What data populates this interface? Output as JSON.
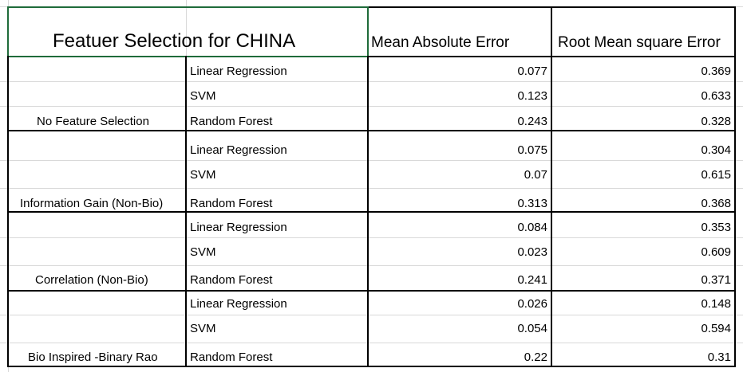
{
  "table": {
    "title": "Featuer Selection for CHINA",
    "col_mae": "Mean Absolute Error",
    "col_rmse": "Root Mean square Error",
    "groups": [
      {
        "label": "No Feature Selection",
        "rows": [
          {
            "model": "Linear Regression",
            "mae": "0.077",
            "rmse": "0.369"
          },
          {
            "model": "SVM",
            "mae": "0.123",
            "rmse": "0.633"
          },
          {
            "model": "Random Forest",
            "mae": "0.243",
            "rmse": "0.328"
          }
        ]
      },
      {
        "label": "Information Gain (Non-Bio)",
        "rows": [
          {
            "model": "Linear Regression",
            "mae": "0.075",
            "rmse": "0.304"
          },
          {
            "model": "SVM",
            "mae": "0.07",
            "rmse": "0.615"
          },
          {
            "model": "Random Forest",
            "mae": "0.313",
            "rmse": "0.368"
          }
        ]
      },
      {
        "label": "Correlation (Non-Bio)",
        "rows": [
          {
            "model": "Linear Regression",
            "mae": "0.084",
            "rmse": "0.353"
          },
          {
            "model": "SVM",
            "mae": "0.023",
            "rmse": "0.609"
          },
          {
            "model": "Random Forest",
            "mae": "0.241",
            "rmse": "0.371"
          }
        ]
      },
      {
        "label": "Bio Inspired -Binary Rao",
        "rows": [
          {
            "model": "Linear Regression",
            "mae": "0.026",
            "rmse": "0.148"
          },
          {
            "model": "SVM",
            "mae": "0.054",
            "rmse": "0.594"
          },
          {
            "model": "Random Forest",
            "mae": "0.22",
            "rmse": "0.31"
          }
        ]
      }
    ]
  }
}
